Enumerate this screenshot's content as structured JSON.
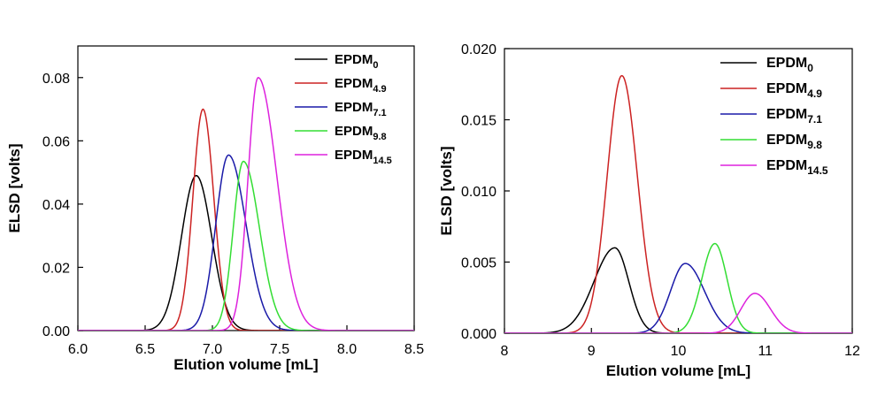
{
  "chart_data": [
    {
      "type": "line",
      "xlabel": "Elution volume [mL]",
      "ylabel": "ELSD [volts]",
      "xlim": [
        6.0,
        8.5
      ],
      "ylim": [
        0.0,
        0.09
      ],
      "xticks": [
        "6.0",
        "6.5",
        "7.0",
        "7.5",
        "8.0",
        "8.5"
      ],
      "yticks": [
        "0.00",
        "0.02",
        "0.04",
        "0.06",
        "0.08"
      ],
      "legend_position": "top-right",
      "series": [
        {
          "name": "EPDM",
          "sub": "0",
          "color": "#000000",
          "peak_x": 6.88,
          "peak_y": 0.049,
          "sigma_left": 0.11,
          "sigma_right": 0.115
        },
        {
          "name": "EPDM",
          "sub": "4.9",
          "color": "#cc2222",
          "peak_x": 6.93,
          "peak_y": 0.07,
          "sigma_left": 0.075,
          "sigma_right": 0.08
        },
        {
          "name": "EPDM",
          "sub": "7.1",
          "color": "#1a1aa8",
          "peak_x": 7.12,
          "peak_y": 0.0555,
          "sigma_left": 0.095,
          "sigma_right": 0.13
        },
        {
          "name": "EPDM",
          "sub": "9.8",
          "color": "#33dd33",
          "peak_x": 7.23,
          "peak_y": 0.0535,
          "sigma_left": 0.075,
          "sigma_right": 0.12
        },
        {
          "name": "EPDM",
          "sub": "14.5",
          "color": "#dd22dd",
          "peak_x": 7.34,
          "peak_y": 0.08,
          "sigma_left": 0.075,
          "sigma_right": 0.14
        }
      ]
    },
    {
      "type": "line",
      "xlabel": "Elution volume [mL]",
      "ylabel": "ELSD [volts]",
      "xlim": [
        8,
        12
      ],
      "ylim": [
        0.0,
        0.02
      ],
      "xticks": [
        "8",
        "9",
        "10",
        "11",
        "12"
      ],
      "yticks": [
        "0.000",
        "0.005",
        "0.010",
        "0.015",
        "0.020"
      ],
      "legend_position": "top-right",
      "series": [
        {
          "name": "EPDM",
          "sub": "0",
          "color": "#000000",
          "peak_x": 9.27,
          "peak_y": 0.006,
          "sigma_left": 0.24,
          "sigma_right": 0.16
        },
        {
          "name": "EPDM",
          "sub": "4.9",
          "color": "#cc2222",
          "peak_x": 9.35,
          "peak_y": 0.0181,
          "sigma_left": 0.17,
          "sigma_right": 0.18
        },
        {
          "name": "EPDM",
          "sub": "7.1",
          "color": "#1a1aa8",
          "peak_x": 10.08,
          "peak_y": 0.0049,
          "sigma_left": 0.17,
          "sigma_right": 0.22
        },
        {
          "name": "EPDM",
          "sub": "9.8",
          "color": "#33dd33",
          "peak_x": 10.42,
          "peak_y": 0.0063,
          "sigma_left": 0.15,
          "sigma_right": 0.14
        },
        {
          "name": "EPDM",
          "sub": "14.5",
          "color": "#dd22dd",
          "peak_x": 10.88,
          "peak_y": 0.0028,
          "sigma_left": 0.16,
          "sigma_right": 0.18
        }
      ]
    }
  ]
}
